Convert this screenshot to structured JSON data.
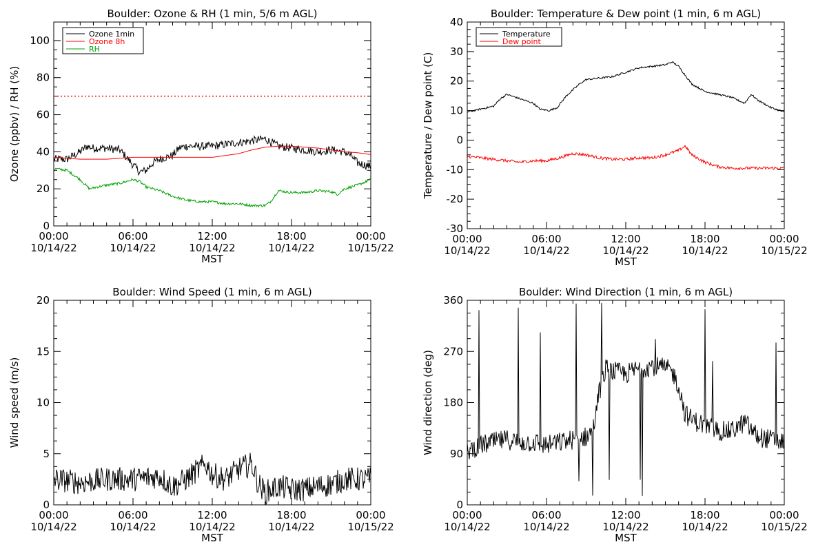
{
  "chart_data": [
    {
      "type": "line",
      "title": "Boulder: Ozone & RH (1 min, 5/6 m AGL)",
      "xlabel": "MST",
      "ylabel": "Ozone (ppbv) / RH (%)",
      "ylim": [
        0,
        110
      ],
      "yticks": [
        0,
        20,
        40,
        60,
        80,
        100
      ],
      "xticks": [
        {
          "time": "00:00",
          "date": "10/14/22"
        },
        {
          "time": "06:00",
          "date": "10/14/22"
        },
        {
          "time": "12:00",
          "date": "10/14/22"
        },
        {
          "time": "18:00",
          "date": "10/14/22"
        },
        {
          "time": "00:00",
          "date": "10/15/22"
        }
      ],
      "xlim_hours": [
        0,
        24
      ],
      "legend_position": "top-left",
      "reference_line": {
        "y": 70,
        "color": "#ff0000",
        "style": "dotted"
      },
      "series": [
        {
          "name": "Ozone 1min",
          "color": "#000000",
          "noise": 2.2,
          "points": [
            [
              0,
              36
            ],
            [
              1,
              36
            ],
            [
              2,
              40
            ],
            [
              2.5,
              43
            ],
            [
              3,
              42
            ],
            [
              4,
              42
            ],
            [
              5,
              41
            ],
            [
              5.5,
              37
            ],
            [
              6,
              33
            ],
            [
              6.5,
              29
            ],
            [
              7,
              30
            ],
            [
              7.5,
              34
            ],
            [
              8,
              36
            ],
            [
              9,
              38
            ],
            [
              9.5,
              42
            ],
            [
              10,
              43
            ],
            [
              11,
              43
            ],
            [
              12,
              43
            ],
            [
              13,
              44
            ],
            [
              14,
              45
            ],
            [
              15,
              46
            ],
            [
              16,
              47
            ],
            [
              16.5,
              45
            ],
            [
              17,
              43
            ],
            [
              18,
              42
            ],
            [
              19,
              41
            ],
            [
              20,
              40
            ],
            [
              21,
              41
            ],
            [
              22,
              40
            ],
            [
              22.5,
              38
            ],
            [
              23,
              34
            ],
            [
              24,
              32
            ]
          ]
        },
        {
          "name": "Ozone 8h",
          "color": "#ff0000",
          "noise": 0,
          "points": [
            [
              0,
              37
            ],
            [
              2,
              36
            ],
            [
              4,
              36
            ],
            [
              6,
              37
            ],
            [
              8,
              37
            ],
            [
              10,
              37
            ],
            [
              12,
              37
            ],
            [
              14,
              39
            ],
            [
              15,
              41
            ],
            [
              16,
              42.5
            ],
            [
              17,
              43
            ],
            [
              18,
              43
            ],
            [
              19,
              42.5
            ],
            [
              20,
              42
            ],
            [
              21,
              41
            ],
            [
              22,
              40
            ],
            [
              23,
              39.5
            ],
            [
              24,
              38.5
            ]
          ]
        },
        {
          "name": "RH",
          "color": "#00a000",
          "noise": 0.7,
          "points": [
            [
              0,
              31
            ],
            [
              1,
              30
            ],
            [
              2,
              25
            ],
            [
              2.7,
              20
            ],
            [
              3.3,
              21
            ],
            [
              4,
              22
            ],
            [
              5,
              23
            ],
            [
              6,
              25
            ],
            [
              6.5,
              24
            ],
            [
              7,
              21
            ],
            [
              8,
              19
            ],
            [
              9,
              16
            ],
            [
              10,
              14
            ],
            [
              11,
              13
            ],
            [
              12,
              13
            ],
            [
              13,
              12
            ],
            [
              14,
              12
            ],
            [
              15,
              11
            ],
            [
              16,
              11
            ],
            [
              16.4,
              13
            ],
            [
              17,
              19
            ],
            [
              18,
              18
            ],
            [
              19,
              18
            ],
            [
              20,
              19
            ],
            [
              21,
              18.5
            ],
            [
              21.5,
              17
            ],
            [
              22,
              20
            ],
            [
              23,
              22
            ],
            [
              24,
              25
            ]
          ]
        }
      ]
    },
    {
      "type": "line",
      "title": "Boulder: Temperature & Dew point (1 min, 6 m AGL)",
      "xlabel": "MST",
      "ylabel": "Temperature / Dew point (C)",
      "ylim": [
        -30,
        40
      ],
      "yticks": [
        -30,
        -20,
        -10,
        0,
        10,
        20,
        30,
        40
      ],
      "xticks": [
        {
          "time": "00:00",
          "date": "10/14/22"
        },
        {
          "time": "06:00",
          "date": "10/14/22"
        },
        {
          "time": "12:00",
          "date": "10/14/22"
        },
        {
          "time": "18:00",
          "date": "10/14/22"
        },
        {
          "time": "00:00",
          "date": "10/15/22"
        }
      ],
      "xlim_hours": [
        0,
        24
      ],
      "legend_position": "top-left",
      "series": [
        {
          "name": "Temperature",
          "color": "#000000",
          "noise": 0.3,
          "points": [
            [
              0,
              9.5
            ],
            [
              1,
              10.5
            ],
            [
              2,
              11.5
            ],
            [
              2.5,
              14
            ],
            [
              3,
              15.5
            ],
            [
              4,
              14
            ],
            [
              5,
              12.5
            ],
            [
              5.5,
              10.5
            ],
            [
              6.2,
              10
            ],
            [
              6.8,
              11
            ],
            [
              7.5,
              15
            ],
            [
              8.5,
              19
            ],
            [
              9,
              20.5
            ],
            [
              10,
              21
            ],
            [
              11,
              21.5
            ],
            [
              12,
              23
            ],
            [
              13,
              24.5
            ],
            [
              14,
              25
            ],
            [
              15,
              25.5
            ],
            [
              15.5,
              26.5
            ],
            [
              16,
              25
            ],
            [
              17,
              19
            ],
            [
              18,
              16.5
            ],
            [
              19,
              15.5
            ],
            [
              20,
              14.5
            ],
            [
              21,
              12.5
            ],
            [
              21.5,
              15.5
            ],
            [
              22,
              13.5
            ],
            [
              23,
              11
            ],
            [
              24,
              9.5
            ]
          ]
        },
        {
          "name": "Dew point",
          "color": "#ff0000",
          "noise": 0.5,
          "points": [
            [
              0,
              -5.5
            ],
            [
              2,
              -6.5
            ],
            [
              3,
              -7
            ],
            [
              4,
              -7.5
            ],
            [
              5,
              -7
            ],
            [
              6,
              -7
            ],
            [
              7,
              -6
            ],
            [
              8,
              -4.5
            ],
            [
              9,
              -5
            ],
            [
              10,
              -6
            ],
            [
              11,
              -6.5
            ],
            [
              12,
              -6.5
            ],
            [
              13,
              -6
            ],
            [
              14,
              -6
            ],
            [
              15,
              -5
            ],
            [
              16,
              -3.5
            ],
            [
              16.5,
              -2
            ],
            [
              17,
              -5
            ],
            [
              18,
              -7.5
            ],
            [
              19,
              -9
            ],
            [
              20,
              -9.5
            ],
            [
              22,
              -9.5
            ],
            [
              24,
              -9.5
            ]
          ]
        }
      ]
    },
    {
      "type": "line",
      "title": "Boulder: Wind Speed (1 min, 6 m AGL)",
      "xlabel": "MST",
      "ylabel": "Wind speed (m/s)",
      "ylim": [
        0,
        20
      ],
      "yticks": [
        0,
        5,
        10,
        15,
        20
      ],
      "xticks": [
        {
          "time": "00:00",
          "date": "10/14/22"
        },
        {
          "time": "06:00",
          "date": "10/14/22"
        },
        {
          "time": "12:00",
          "date": "10/14/22"
        },
        {
          "time": "18:00",
          "date": "10/14/22"
        },
        {
          "time": "00:00",
          "date": "10/15/22"
        }
      ],
      "xlim_hours": [
        0,
        24
      ],
      "series": [
        {
          "name": "",
          "color": "#000000",
          "noise": 1.2,
          "points": [
            [
              0,
              2.5
            ],
            [
              2,
              2.2
            ],
            [
              4,
              2.5
            ],
            [
              6,
              2.5
            ],
            [
              8,
              2.8
            ],
            [
              9,
              1.8
            ],
            [
              10,
              2.5
            ],
            [
              11,
              3.5
            ],
            [
              11.5,
              4
            ],
            [
              12,
              3
            ],
            [
              13,
              2.5
            ],
            [
              14,
              3.5
            ],
            [
              15,
              4
            ],
            [
              15.5,
              2
            ],
            [
              16,
              1.2
            ],
            [
              17,
              1.8
            ],
            [
              18,
              1.5
            ],
            [
              19,
              1.5
            ],
            [
              20,
              1.8
            ],
            [
              21,
              2
            ],
            [
              22,
              2.5
            ],
            [
              24,
              2.5
            ]
          ]
        }
      ]
    },
    {
      "type": "line",
      "title": "Boulder: Wind Direction (1 min, 6 m AGL)",
      "xlabel": "MST",
      "ylabel": "Wind direction (deg)",
      "ylim": [
        0,
        360
      ],
      "yticks": [
        0,
        90,
        180,
        270,
        360
      ],
      "xticks": [
        {
          "time": "00:00",
          "date": "10/14/22"
        },
        {
          "time": "06:00",
          "date": "10/14/22"
        },
        {
          "time": "12:00",
          "date": "10/14/22"
        },
        {
          "time": "18:00",
          "date": "10/14/22"
        },
        {
          "time": "00:00",
          "date": "10/15/22"
        }
      ],
      "xlim_hours": [
        0,
        24
      ],
      "series": [
        {
          "name": "",
          "color": "#000000",
          "noise": 18,
          "points": [
            [
              0,
              95
            ],
            [
              1,
              105
            ],
            [
              2,
              110
            ],
            [
              3,
              115
            ],
            [
              4,
              110
            ],
            [
              5,
              110
            ],
            [
              6,
              105
            ],
            [
              7,
              110
            ],
            [
              8,
              115
            ],
            [
              9,
              120
            ],
            [
              9.5,
              130
            ],
            [
              10,
              200
            ],
            [
              10.5,
              240
            ],
            [
              11,
              235
            ],
            [
              12,
              230
            ],
            [
              13,
              240
            ],
            [
              14,
              245
            ],
            [
              15,
              240
            ],
            [
              15.5,
              235
            ],
            [
              16,
              210
            ],
            [
              16.5,
              160
            ],
            [
              17,
              150
            ],
            [
              18,
              140
            ],
            [
              19,
              130
            ],
            [
              20,
              130
            ],
            [
              21,
              145
            ],
            [
              22,
              120
            ],
            [
              23,
              115
            ],
            [
              24,
              110
            ]
          ]
        }
      ]
    }
  ]
}
